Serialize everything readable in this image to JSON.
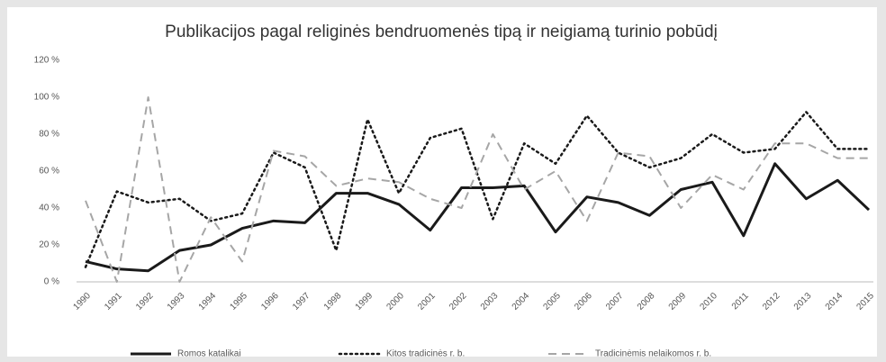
{
  "chart_data": {
    "type": "line",
    "title": "Publikacijos pagal religinės bendruomenės tipą ir neigiamą turinio pobūdį",
    "categories": [
      "1990",
      "1991",
      "1992",
      "1993",
      "1994",
      "1995",
      "1996",
      "1997",
      "1998",
      "1999",
      "2000",
      "2001",
      "2002",
      "2003",
      "2004",
      "2005",
      "2006",
      "2007",
      "2008",
      "2009",
      "2010",
      "2011",
      "2012",
      "2013",
      "2014",
      "2015"
    ],
    "series": [
      {
        "name": "Romos katalikai",
        "color": "#1a1a1a",
        "style": "solid",
        "values": [
          11,
          7,
          6,
          17,
          20,
          29,
          33,
          32,
          48,
          48,
          42,
          28,
          51,
          51,
          52,
          27,
          46,
          43,
          36,
          50,
          54,
          25,
          64,
          45,
          55,
          39
        ]
      },
      {
        "name": "Kitos tradicinės r. b.",
        "color": "#1a1a1a",
        "style": "dotted",
        "values": [
          8,
          49,
          43,
          45,
          33,
          37,
          70,
          62,
          17,
          88,
          48,
          78,
          83,
          34,
          75,
          64,
          90,
          70,
          62,
          67,
          80,
          70,
          72,
          92,
          72,
          72
        ]
      },
      {
        "name": "Tradicinėmis nelaikomos r. b.",
        "color": "#a6a6a6",
        "style": "dashed",
        "values": [
          44,
          0,
          100,
          0,
          35,
          11,
          71,
          68,
          52,
          56,
          54,
          45,
          40,
          80,
          50,
          60,
          33,
          70,
          68,
          40,
          58,
          50,
          75,
          75,
          67,
          67
        ]
      }
    ],
    "ylim": [
      0,
      120
    ],
    "yticks": [
      {
        "value": 0,
        "label": "0 %"
      },
      {
        "value": 20,
        "label": "20 %"
      },
      {
        "value": 40,
        "label": "40 %"
      },
      {
        "value": 60,
        "label": "60 %"
      },
      {
        "value": 80,
        "label": "80 %"
      },
      {
        "value": 100,
        "label": "100 %"
      },
      {
        "value": 120,
        "label": "120 %"
      }
    ],
    "grid": false,
    "legend": "bottom"
  }
}
